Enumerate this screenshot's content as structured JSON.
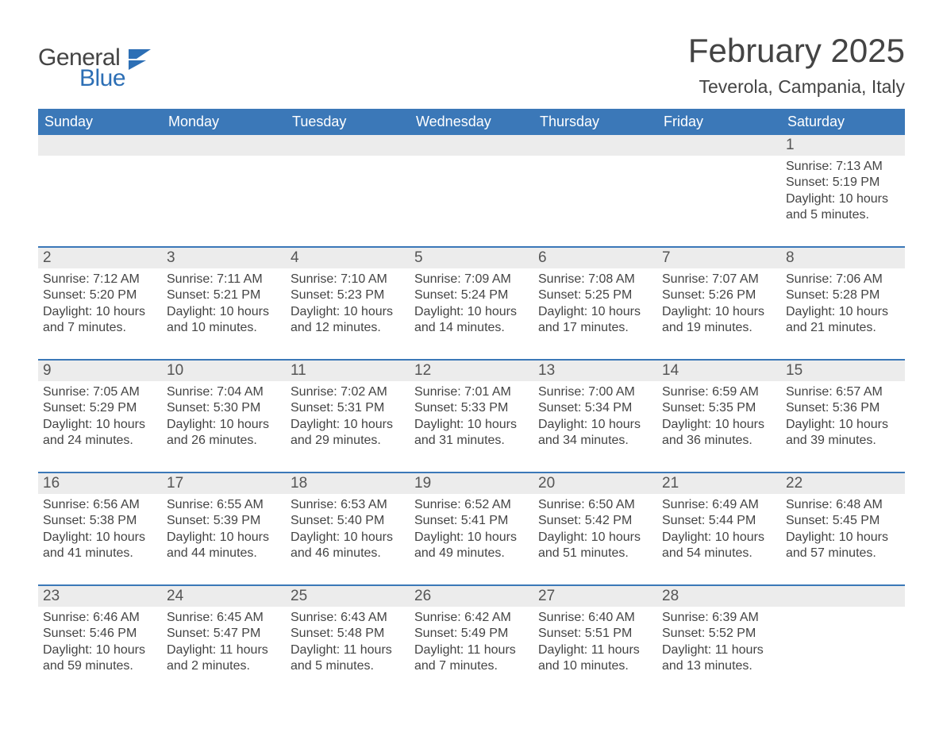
{
  "logo": {
    "general": "General",
    "blue": "Blue"
  },
  "title": "February 2025",
  "location": "Teverola, Campania, Italy",
  "colors": {
    "header_bg": "#3b78b8",
    "header_text": "#ffffff",
    "daynum_bg": "#ececec",
    "body_text": "#444444",
    "rule": "#3b78b8",
    "logo_blue": "#2d6fb5"
  },
  "fonts": {
    "title_size": 42,
    "location_size": 23,
    "weekday_size": 18,
    "daynum_size": 19,
    "body_size": 16
  },
  "weekdays": [
    "Sunday",
    "Monday",
    "Tuesday",
    "Wednesday",
    "Thursday",
    "Friday",
    "Saturday"
  ],
  "weeks": [
    [
      {
        "blank": true
      },
      {
        "blank": true
      },
      {
        "blank": true
      },
      {
        "blank": true
      },
      {
        "blank": true
      },
      {
        "blank": true
      },
      {
        "n": "1",
        "sunrise": "Sunrise: 7:13 AM",
        "sunset": "Sunset: 5:19 PM",
        "daylight": "Daylight: 10 hours and 5 minutes."
      }
    ],
    [
      {
        "n": "2",
        "sunrise": "Sunrise: 7:12 AM",
        "sunset": "Sunset: 5:20 PM",
        "daylight": "Daylight: 10 hours and 7 minutes."
      },
      {
        "n": "3",
        "sunrise": "Sunrise: 7:11 AM",
        "sunset": "Sunset: 5:21 PM",
        "daylight": "Daylight: 10 hours and 10 minutes."
      },
      {
        "n": "4",
        "sunrise": "Sunrise: 7:10 AM",
        "sunset": "Sunset: 5:23 PM",
        "daylight": "Daylight: 10 hours and 12 minutes."
      },
      {
        "n": "5",
        "sunrise": "Sunrise: 7:09 AM",
        "sunset": "Sunset: 5:24 PM",
        "daylight": "Daylight: 10 hours and 14 minutes."
      },
      {
        "n": "6",
        "sunrise": "Sunrise: 7:08 AM",
        "sunset": "Sunset: 5:25 PM",
        "daylight": "Daylight: 10 hours and 17 minutes."
      },
      {
        "n": "7",
        "sunrise": "Sunrise: 7:07 AM",
        "sunset": "Sunset: 5:26 PM",
        "daylight": "Daylight: 10 hours and 19 minutes."
      },
      {
        "n": "8",
        "sunrise": "Sunrise: 7:06 AM",
        "sunset": "Sunset: 5:28 PM",
        "daylight": "Daylight: 10 hours and 21 minutes."
      }
    ],
    [
      {
        "n": "9",
        "sunrise": "Sunrise: 7:05 AM",
        "sunset": "Sunset: 5:29 PM",
        "daylight": "Daylight: 10 hours and 24 minutes."
      },
      {
        "n": "10",
        "sunrise": "Sunrise: 7:04 AM",
        "sunset": "Sunset: 5:30 PM",
        "daylight": "Daylight: 10 hours and 26 minutes."
      },
      {
        "n": "11",
        "sunrise": "Sunrise: 7:02 AM",
        "sunset": "Sunset: 5:31 PM",
        "daylight": "Daylight: 10 hours and 29 minutes."
      },
      {
        "n": "12",
        "sunrise": "Sunrise: 7:01 AM",
        "sunset": "Sunset: 5:33 PM",
        "daylight": "Daylight: 10 hours and 31 minutes."
      },
      {
        "n": "13",
        "sunrise": "Sunrise: 7:00 AM",
        "sunset": "Sunset: 5:34 PM",
        "daylight": "Daylight: 10 hours and 34 minutes."
      },
      {
        "n": "14",
        "sunrise": "Sunrise: 6:59 AM",
        "sunset": "Sunset: 5:35 PM",
        "daylight": "Daylight: 10 hours and 36 minutes."
      },
      {
        "n": "15",
        "sunrise": "Sunrise: 6:57 AM",
        "sunset": "Sunset: 5:36 PM",
        "daylight": "Daylight: 10 hours and 39 minutes."
      }
    ],
    [
      {
        "n": "16",
        "sunrise": "Sunrise: 6:56 AM",
        "sunset": "Sunset: 5:38 PM",
        "daylight": "Daylight: 10 hours and 41 minutes."
      },
      {
        "n": "17",
        "sunrise": "Sunrise: 6:55 AM",
        "sunset": "Sunset: 5:39 PM",
        "daylight": "Daylight: 10 hours and 44 minutes."
      },
      {
        "n": "18",
        "sunrise": "Sunrise: 6:53 AM",
        "sunset": "Sunset: 5:40 PM",
        "daylight": "Daylight: 10 hours and 46 minutes."
      },
      {
        "n": "19",
        "sunrise": "Sunrise: 6:52 AM",
        "sunset": "Sunset: 5:41 PM",
        "daylight": "Daylight: 10 hours and 49 minutes."
      },
      {
        "n": "20",
        "sunrise": "Sunrise: 6:50 AM",
        "sunset": "Sunset: 5:42 PM",
        "daylight": "Daylight: 10 hours and 51 minutes."
      },
      {
        "n": "21",
        "sunrise": "Sunrise: 6:49 AM",
        "sunset": "Sunset: 5:44 PM",
        "daylight": "Daylight: 10 hours and 54 minutes."
      },
      {
        "n": "22",
        "sunrise": "Sunrise: 6:48 AM",
        "sunset": "Sunset: 5:45 PM",
        "daylight": "Daylight: 10 hours and 57 minutes."
      }
    ],
    [
      {
        "n": "23",
        "sunrise": "Sunrise: 6:46 AM",
        "sunset": "Sunset: 5:46 PM",
        "daylight": "Daylight: 10 hours and 59 minutes."
      },
      {
        "n": "24",
        "sunrise": "Sunrise: 6:45 AM",
        "sunset": "Sunset: 5:47 PM",
        "daylight": "Daylight: 11 hours and 2 minutes."
      },
      {
        "n": "25",
        "sunrise": "Sunrise: 6:43 AM",
        "sunset": "Sunset: 5:48 PM",
        "daylight": "Daylight: 11 hours and 5 minutes."
      },
      {
        "n": "26",
        "sunrise": "Sunrise: 6:42 AM",
        "sunset": "Sunset: 5:49 PM",
        "daylight": "Daylight: 11 hours and 7 minutes."
      },
      {
        "n": "27",
        "sunrise": "Sunrise: 6:40 AM",
        "sunset": "Sunset: 5:51 PM",
        "daylight": "Daylight: 11 hours and 10 minutes."
      },
      {
        "n": "28",
        "sunrise": "Sunrise: 6:39 AM",
        "sunset": "Sunset: 5:52 PM",
        "daylight": "Daylight: 11 hours and 13 minutes."
      },
      {
        "blank": true
      }
    ]
  ]
}
